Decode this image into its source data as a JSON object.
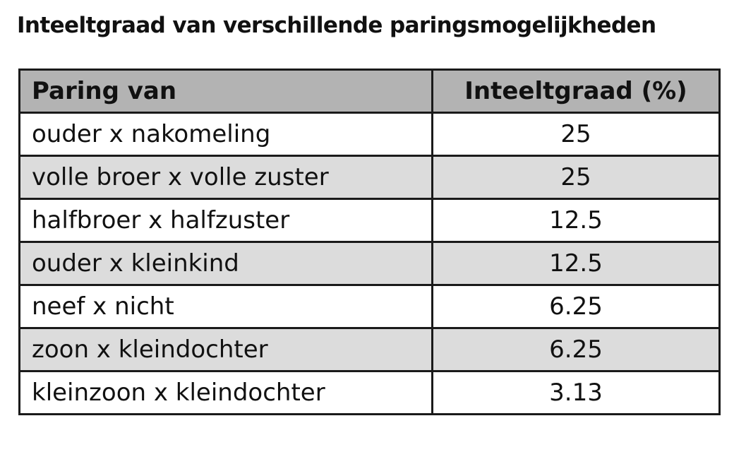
{
  "title": "Inteeltgraad van verschillende paringsmogelijkheden",
  "table": {
    "headers": [
      "Paring van",
      "Inteeltgraad (%)"
    ],
    "rows": [
      {
        "pairing": "ouder x nakomeling",
        "degree": "25"
      },
      {
        "pairing": "volle broer x volle zuster",
        "degree": "25"
      },
      {
        "pairing": "halfbroer x halfzuster",
        "degree": "12.5"
      },
      {
        "pairing": "ouder x kleinkind",
        "degree": "12.5"
      },
      {
        "pairing": "neef x nicht",
        "degree": "6.25"
      },
      {
        "pairing": "zoon x kleindochter",
        "degree": "6.25"
      },
      {
        "pairing": "kleinzoon x kleindochter",
        "degree": "3.13"
      }
    ]
  },
  "colors": {
    "header_background": "#b3b3b3",
    "shaded_row_background": "#dcdcdc",
    "plain_row_background": "#ffffff",
    "border": "#1a1a1a"
  }
}
